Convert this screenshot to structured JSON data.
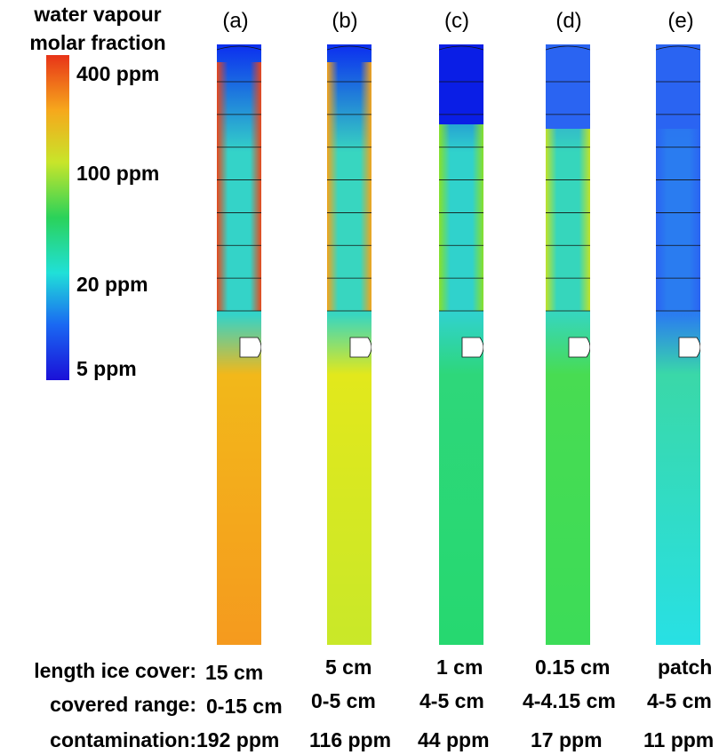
{
  "legend": {
    "title_line1": "water vapour",
    "title_line2": "molar fraction",
    "ticks": [
      "400 ppm",
      "100 ppm",
      "20 ppm",
      "5 ppm"
    ],
    "colormap": [
      "#e83418",
      "#f6a81c",
      "#c8e52a",
      "#2ad25a",
      "#20e0d8",
      "#1a68f2",
      "#1a10d8"
    ]
  },
  "row_labels": {
    "length": "length ice cover:",
    "range": "covered range:",
    "contamination": "contamination:"
  },
  "panels": [
    {
      "label": "(a)",
      "length": "15 cm",
      "range": "0-15 cm",
      "contamination": "192 ppm",
      "colors": {
        "inlet": "#0b2ef0",
        "wall_top": "#e8481c",
        "mid": "#34d3c8",
        "lower": "#f2b81a",
        "bottom": "#f59a1e"
      }
    },
    {
      "label": "(b)",
      "length": "5 cm",
      "range": "0-5 cm",
      "contamination": "116 ppm",
      "colors": {
        "inlet": "#0b2ef0",
        "wall_top": "#f3a41b",
        "mid": "#38d6c0",
        "lower": "#e2e81c",
        "bottom": "#c9e829"
      }
    },
    {
      "label": "(c)",
      "length": "1 cm",
      "range": "4-5 cm",
      "contamination": "44 ppm",
      "colors": {
        "inlet": "#0a1ee6",
        "wall_top": "#88e02a",
        "mid": "#30d2cc",
        "lower": "#2ed77a",
        "bottom": "#26d870"
      }
    },
    {
      "label": "(d)",
      "length": "0.15 cm",
      "range": "4-4.15 cm",
      "contamination": "17 ppm",
      "colors": {
        "inlet": "#2a64f2",
        "wall_top": "#c0e228",
        "mid": "#36d6bc",
        "lower": "#48dc52",
        "bottom": "#3cdc58"
      }
    },
    {
      "label": "(e)",
      "length": "patch",
      "range": "4-5 cm",
      "contamination": "11 ppm",
      "colors": {
        "inlet": "#2a64f2",
        "wall_top": "#2a64f2",
        "mid": "#2a7cf0",
        "lower": "#3ad8a8",
        "bottom": "#28e0e4"
      }
    }
  ]
}
